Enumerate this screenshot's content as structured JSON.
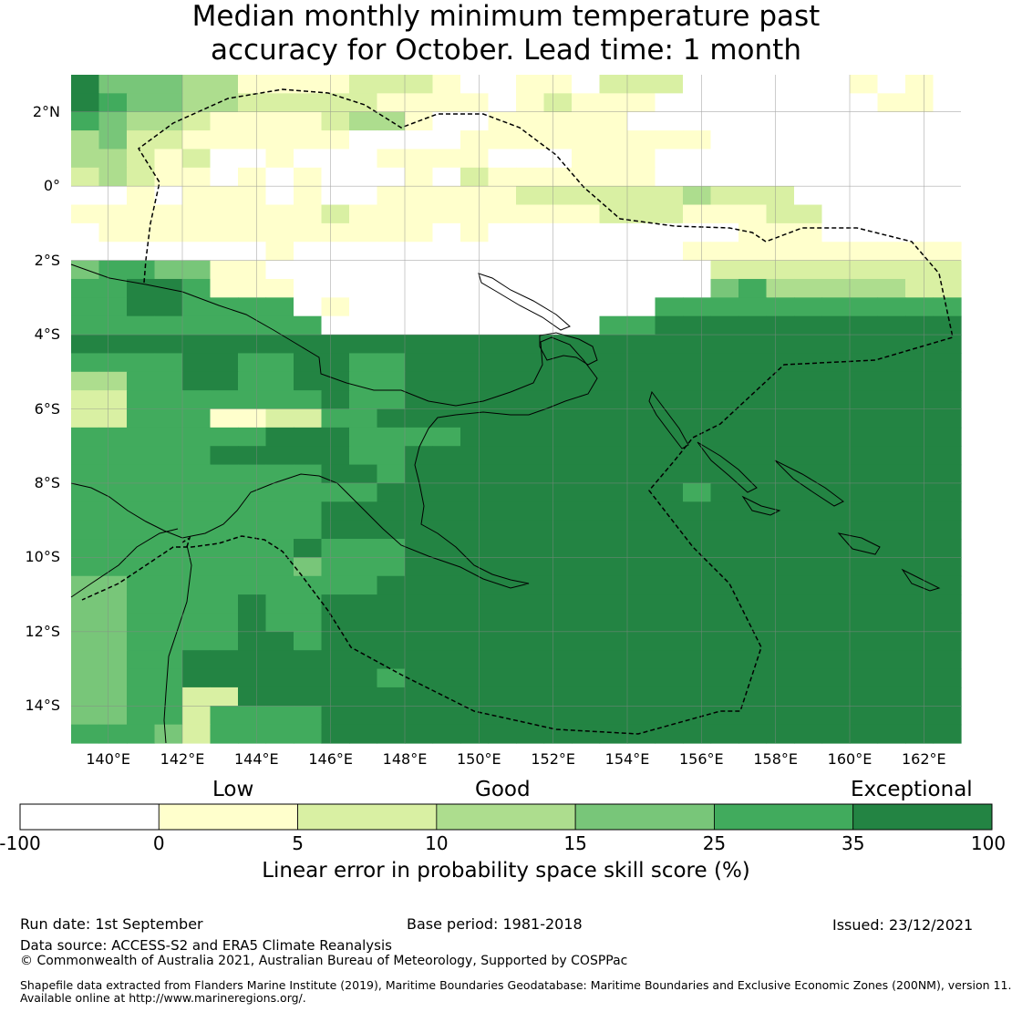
{
  "title": {
    "line1": "Median monthly minimum temperature past",
    "line2": "accuracy for October. Lead time: 1 month"
  },
  "map": {
    "lon_range": [
      139,
      163
    ],
    "lat_range": [
      -15,
      3
    ],
    "lat_ticks": [
      {
        "value": 2,
        "label": "2°N"
      },
      {
        "value": 0,
        "label": "0°"
      },
      {
        "value": -2,
        "label": "2°S"
      },
      {
        "value": -4,
        "label": "4°S"
      },
      {
        "value": -6,
        "label": "6°S"
      },
      {
        "value": -8,
        "label": "8°S"
      },
      {
        "value": -10,
        "label": "10°S"
      },
      {
        "value": -12,
        "label": "12°S"
      },
      {
        "value": -14,
        "label": "14°S"
      }
    ],
    "lon_ticks": [
      {
        "value": 140,
        "label": "140°E"
      },
      {
        "value": 142,
        "label": "142°E"
      },
      {
        "value": 144,
        "label": "144°E"
      },
      {
        "value": 146,
        "label": "146°E"
      },
      {
        "value": 148,
        "label": "148°E"
      },
      {
        "value": 150,
        "label": "150°E"
      },
      {
        "value": 152,
        "label": "152°E"
      },
      {
        "value": 154,
        "label": "154°E"
      },
      {
        "value": 156,
        "label": "156°E"
      },
      {
        "value": 158,
        "label": "158°E"
      },
      {
        "value": 160,
        "label": "160°E"
      },
      {
        "value": 162,
        "label": "162°E"
      }
    ],
    "grid_lines": true,
    "skill_grid_rows_north_to_south": [
      "64443311112221001102220000001010",
      "65443322222111101211100000000110",
      "54332111123310011111000000000000",
      "34221111110000111111111000000000",
      "33212001000111100011100000000000",
      "23211010100010211111100000000000",
      "00101110100111112222223222000000",
      "11111111121111111112221112200000",
      "01111111111110100000000011100000",
      "00000001000000000000001111111111",
      "45544110000000000000000222222222",
      "55665111000000000000000453333322",
      "55665555010000000000055555555555",
      "55555555500000000005566666666666",
      "66666666666666666666666666666666",
      "55556655665566666666666666666666",
      "33556655665566666666666666666666",
      "22555555565566666666666666666666",
      "22555112255666666666666666666666",
      "55555556665555666666666666666666",
      "55555666665566666666666666666666",
      "55555555566566666666666666666666",
      "55555555555666666666665666666666",
      "55555555566666666666666666666666",
      "55555555566666666666666666666666",
      "55555555655566666666666666666666",
      "55555555455566666666666666666666",
      "44555555555666666666666666666666",
      "44555565566666666666666666666666",
      "44555565566666666666666666666666",
      "44555566566666666666666666666666",
      "44556666666666666666666666666666",
      "44556666666566666666666666666666",
      "44552266666666666666666666666666",
      "44552555566666666666666666666666",
      "55542555566666666666666666666666"
    ]
  },
  "colorbar": {
    "categories": [
      "Low",
      "Good",
      "Exceptional"
    ],
    "ticks": [
      "-100",
      "0",
      "5",
      "10",
      "15",
      "25",
      "35",
      "100"
    ],
    "colors": [
      "#ffffff",
      "#ffffcc",
      "#d9f0a3",
      "#addd8e",
      "#78c679",
      "#41ab5d",
      "#238443"
    ],
    "title": "Linear error in probability space skill score (%)"
  },
  "footer": {
    "run_date": "Run date: 1st September",
    "base_period": "Base period: 1981-2018",
    "issued": "Issued: 23/12/2021",
    "data_source": "Data source: ACCESS-S2 and ERA5 Climate Reanalysis",
    "copyright": "© Commonwealth of Australia 2021, Australian Bureau of Meteorology, Supported by COSPPac",
    "shapefile_line1": "Shapefile data extracted from Flanders Marine Institute (2019), Maritime Boundaries Geodatabase: Maritime Boundaries and Exclusive Economic Zones (200NM), version 11.",
    "shapefile_line2": "Available online at http://www.marineregions.org/."
  }
}
